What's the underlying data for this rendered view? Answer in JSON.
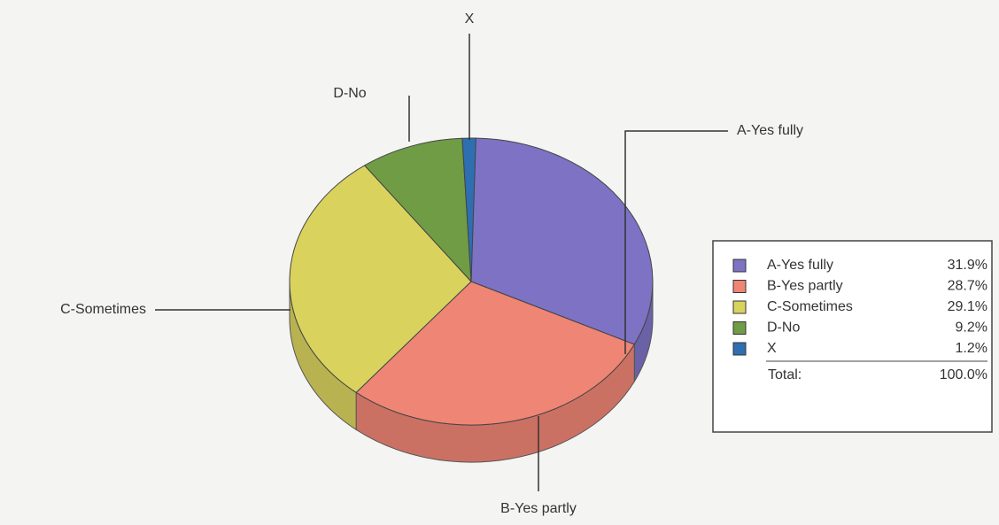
{
  "chart_data": {
    "type": "pie",
    "categories": [
      "A-Yes fully",
      "B-Yes partly",
      "C-Sometimes",
      "D-No",
      "X"
    ],
    "values": [
      31.9,
      28.7,
      29.1,
      9.2,
      1.2
    ],
    "value_labels": [
      "31.9%",
      "28.7%",
      "29.1%",
      "9.2%",
      "1.2%"
    ],
    "colors": [
      "#7d72c4",
      "#ef8575",
      "#d9d35e",
      "#6f9c45",
      "#2d6fb0"
    ],
    "total": {
      "label": "Total:",
      "value": 100,
      "value_label": "100.0%"
    },
    "legend": "right"
  }
}
